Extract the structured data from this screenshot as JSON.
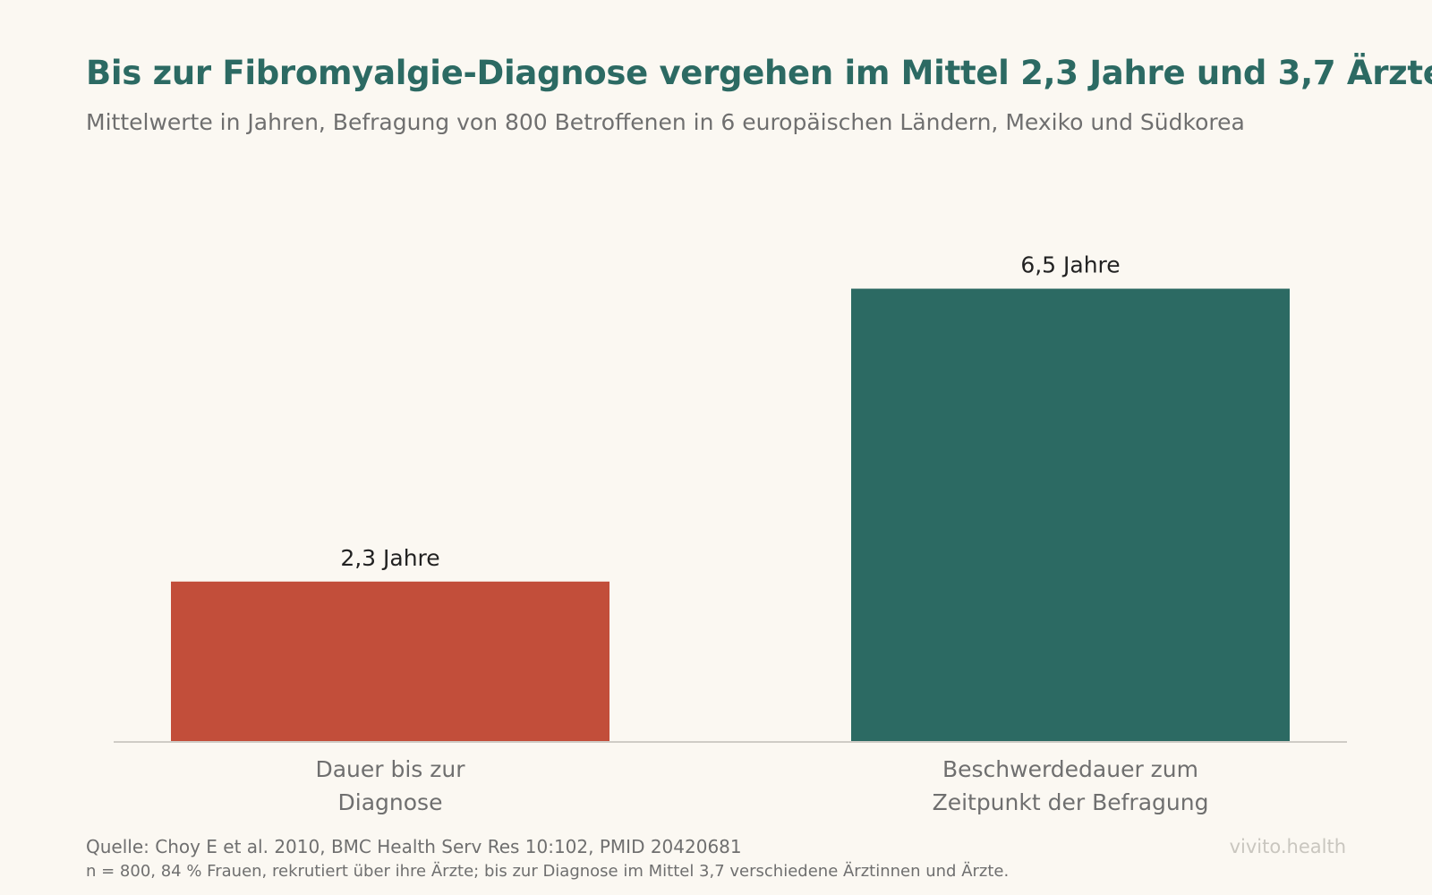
{
  "header": {
    "title": "Bis zur Fibromyalgie-Diagnose vergehen im Mittel 2,3 Jahre und 3,7 Ärzte",
    "subtitle": "Mittelwerte in Jahren, Befragung von 800 Betroffenen in 6 europäischen Ländern, Mexiko und Südkorea"
  },
  "chart_data": {
    "type": "bar",
    "categories": [
      [
        "Dauer bis zur",
        "Diagnose"
      ],
      [
        "Beschwerdedauer zum",
        "Zeitpunkt der Befragung"
      ]
    ],
    "values": [
      2.3,
      6.5
    ],
    "data_labels": [
      "2,3 Jahre",
      "6,5 Jahre"
    ],
    "colors": [
      "#C24E3A",
      "#2C6A63"
    ],
    "ylim": [
      0,
      7.2
    ],
    "grid": false,
    "legend": "none"
  },
  "footer": {
    "source": "Quelle: Choy E et al. 2010, BMC Health Serv Res 10:102, PMID 20420681",
    "note": "n = 800, 84 % Frauen, rekrutiert über ihre Ärzte; bis zur Diagnose im Mittel 3,7 verschiedene Ärztinnen und Ärzte.",
    "brand": "vivito.health"
  },
  "colors": {
    "background": "#FBF8F2",
    "title": "#2C6A63",
    "muted_text": "#6F6F6F",
    "axis": "#CFCCC6",
    "brand": "#C9C6BF"
  }
}
